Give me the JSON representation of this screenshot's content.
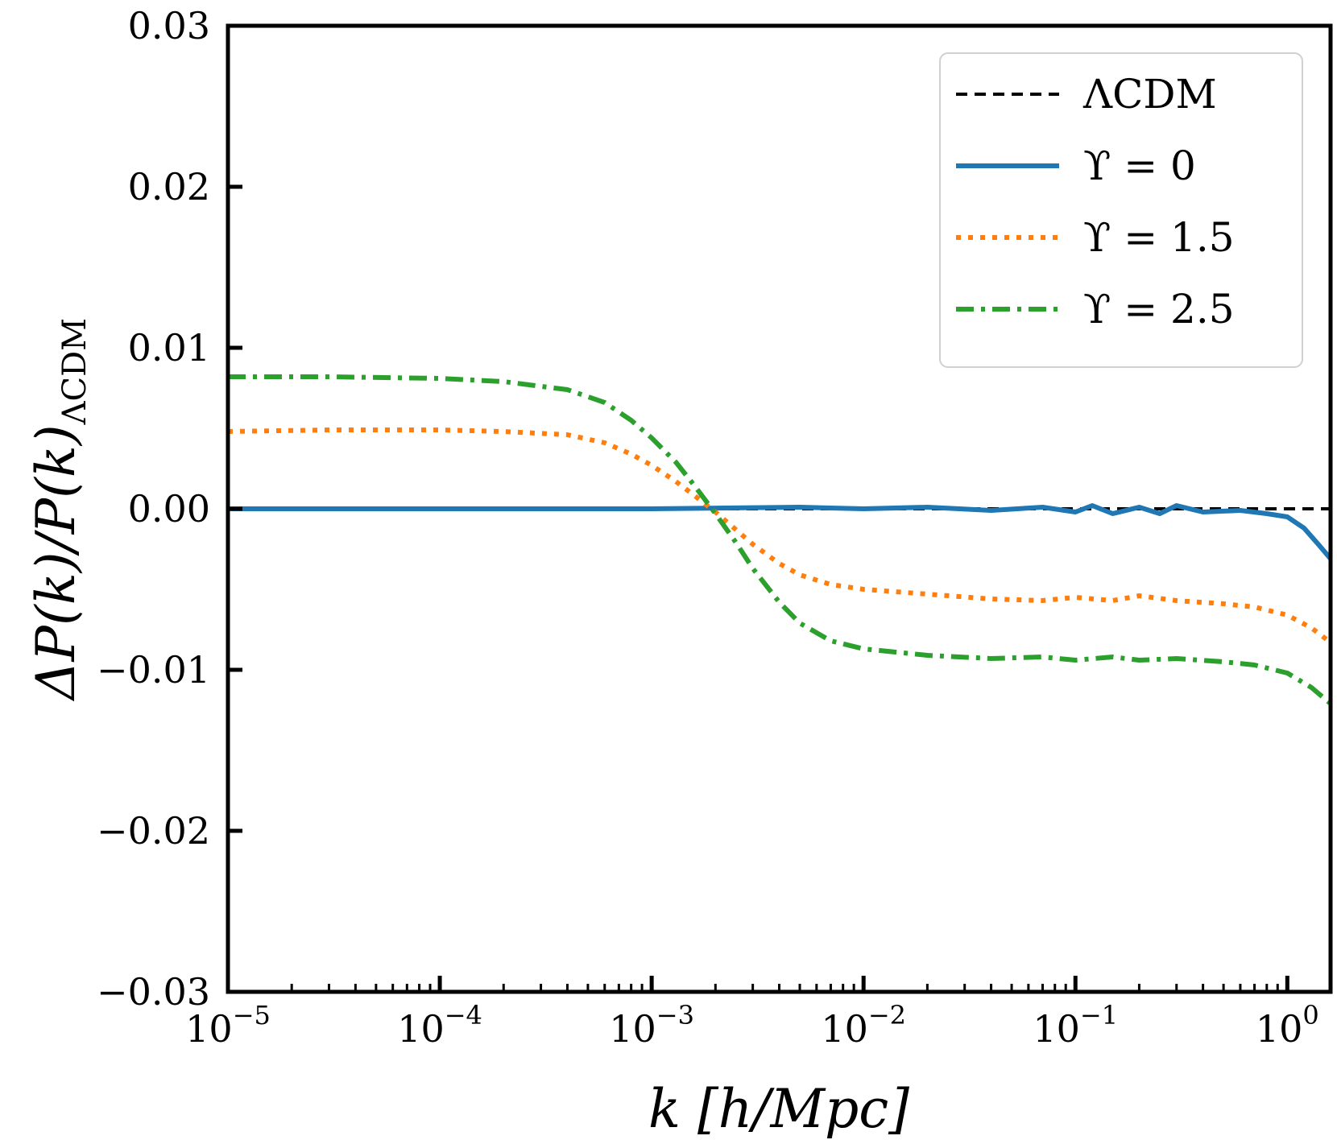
{
  "chart_data": {
    "type": "line",
    "xscale": "log",
    "xlim": [
      1e-05,
      1.6
    ],
    "ylim": [
      -0.03,
      0.03
    ],
    "xlabel": "k [h/Mpc]",
    "ylabel": "ΔP(k)/P(k)",
    "ylabel_sub": "ΛCDM",
    "grid": false,
    "legend_position": "top-right",
    "y_ticks": [
      {
        "value": -0.03,
        "label": "−0.03"
      },
      {
        "value": -0.02,
        "label": "−0.02"
      },
      {
        "value": -0.01,
        "label": "−0.01"
      },
      {
        "value": 0.0,
        "label": "0.00"
      },
      {
        "value": 0.01,
        "label": "0.01"
      },
      {
        "value": 0.02,
        "label": "0.02"
      },
      {
        "value": 0.03,
        "label": "0.03"
      }
    ],
    "x_ticks": [
      {
        "value": 1e-05,
        "base": "10",
        "exp": "−5"
      },
      {
        "value": 0.0001,
        "base": "10",
        "exp": "−4"
      },
      {
        "value": 0.001,
        "base": "10",
        "exp": "−3"
      },
      {
        "value": 0.01,
        "base": "10",
        "exp": "−2"
      },
      {
        "value": 0.1,
        "base": "10",
        "exp": "−1"
      },
      {
        "value": 1,
        "base": "10",
        "exp": "0"
      }
    ],
    "series": [
      {
        "name": "ΛCDM",
        "color": "#000000",
        "style": "dashed",
        "x": [
          1e-05,
          1.6
        ],
        "y": [
          0.0,
          0.0
        ]
      },
      {
        "name": "ϒ = 0",
        "color": "#1f77b4",
        "style": "solid",
        "x": [
          1e-05,
          0.0001,
          0.001,
          0.005,
          0.01,
          0.02,
          0.04,
          0.07,
          0.1,
          0.12,
          0.15,
          0.2,
          0.25,
          0.3,
          0.4,
          0.6,
          0.8,
          1.0,
          1.2,
          1.4,
          1.6
        ],
        "y": [
          0.0,
          0.0,
          0.0,
          0.0001,
          0.0,
          0.0001,
          -0.0001,
          0.0001,
          -0.0002,
          0.0002,
          -0.0003,
          0.0001,
          -0.0003,
          0.0002,
          -0.0002,
          -0.0001,
          -0.0003,
          -0.0005,
          -0.0012,
          -0.0022,
          -0.0031
        ]
      },
      {
        "name": "ϒ = 1.5",
        "color": "#ff7f0e",
        "style": "dotted",
        "x": [
          1e-05,
          3e-05,
          0.0001,
          0.0002,
          0.0004,
          0.0006,
          0.0008,
          0.001,
          0.0013,
          0.0016,
          0.002,
          0.0025,
          0.003,
          0.004,
          0.005,
          0.007,
          0.01,
          0.02,
          0.04,
          0.07,
          0.1,
          0.15,
          0.2,
          0.3,
          0.5,
          0.7,
          1.0,
          1.3,
          1.6
        ],
        "y": [
          0.0048,
          0.0049,
          0.0049,
          0.0048,
          0.0046,
          0.0041,
          0.0034,
          0.0027,
          0.0017,
          0.0008,
          -0.0002,
          -0.0013,
          -0.0022,
          -0.0034,
          -0.0041,
          -0.0047,
          -0.005,
          -0.0053,
          -0.0056,
          -0.0057,
          -0.0055,
          -0.0057,
          -0.0054,
          -0.0057,
          -0.0059,
          -0.0061,
          -0.0066,
          -0.0074,
          -0.0083
        ]
      },
      {
        "name": "ϒ = 2.5",
        "color": "#2ca02c",
        "style": "dashdot",
        "x": [
          1e-05,
          3e-05,
          0.0001,
          0.0002,
          0.0004,
          0.0006,
          0.0008,
          0.001,
          0.0013,
          0.0016,
          0.002,
          0.0025,
          0.003,
          0.004,
          0.005,
          0.007,
          0.01,
          0.02,
          0.04,
          0.07,
          0.1,
          0.15,
          0.2,
          0.3,
          0.5,
          0.7,
          1.0,
          1.3,
          1.6
        ],
        "y": [
          0.0082,
          0.0082,
          0.0081,
          0.0079,
          0.0074,
          0.0066,
          0.0055,
          0.0044,
          0.0029,
          0.0014,
          -0.0003,
          -0.0021,
          -0.0037,
          -0.0058,
          -0.0071,
          -0.0082,
          -0.0087,
          -0.0091,
          -0.0093,
          -0.0092,
          -0.0094,
          -0.0092,
          -0.0094,
          -0.0093,
          -0.0095,
          -0.0097,
          -0.0102,
          -0.0111,
          -0.0121
        ]
      }
    ]
  }
}
